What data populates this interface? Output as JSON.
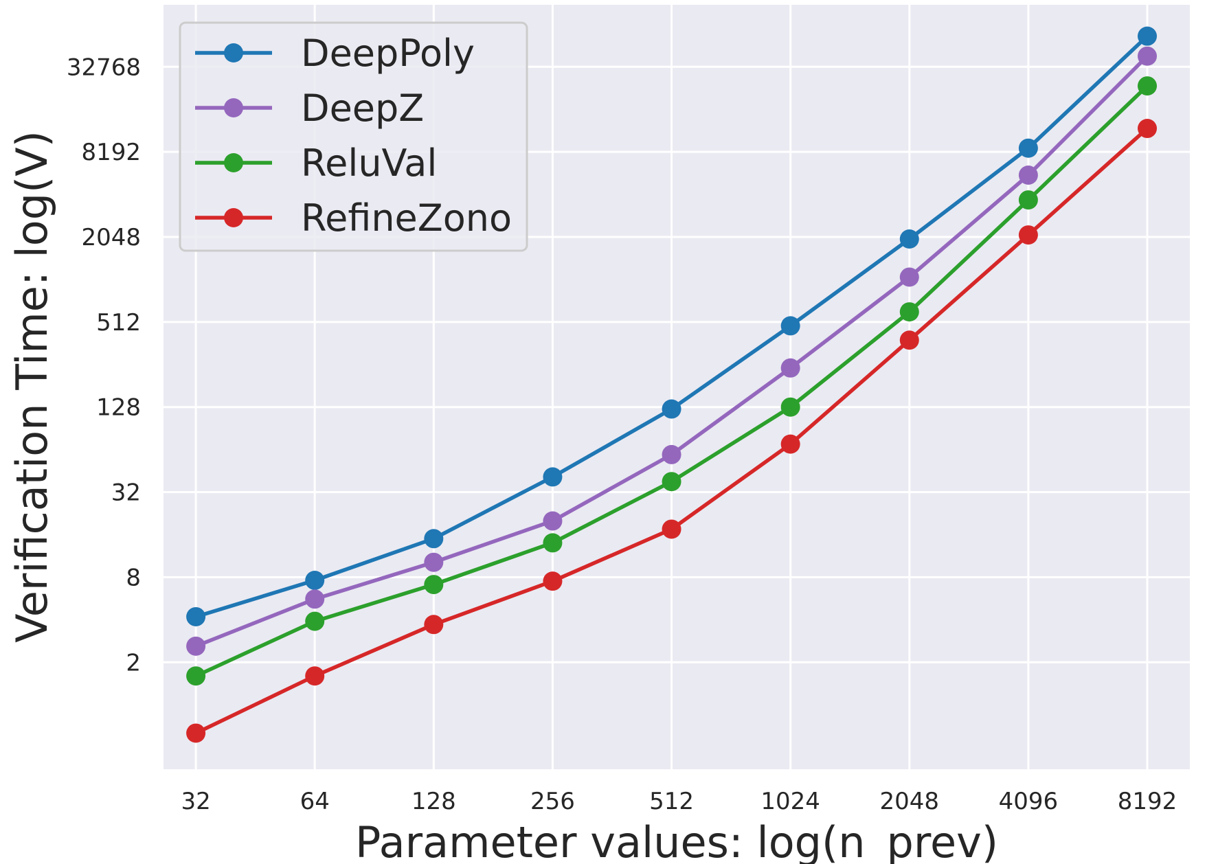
{
  "chart_data": {
    "type": "line",
    "title": "",
    "xlabel": "Parameter values: log(n_prev)",
    "ylabel": "Verification Time: log(V)",
    "x_scale": "log2",
    "y_scale": "log2",
    "x": [
      32,
      64,
      128,
      256,
      512,
      1024,
      2048,
      4096,
      8192
    ],
    "x_ticks": [
      "32",
      "64",
      "128",
      "256",
      "512",
      "1024",
      "2048",
      "4096",
      "8192"
    ],
    "y_ticks": [
      "2",
      "8",
      "32",
      "128",
      "512",
      "2048",
      "8192",
      "32768"
    ],
    "y_tick_values": [
      2,
      8,
      32,
      128,
      512,
      2048,
      8192,
      32768
    ],
    "xlim": [
      26.5,
      10500
    ],
    "ylim": [
      0.35,
      90000
    ],
    "grid": true,
    "legend_position": "top-left",
    "series": [
      {
        "name": "DeepPoly",
        "color": "#1f77b4",
        "values": [
          4.2,
          7.6,
          15,
          41,
          124,
          481,
          1980,
          8706,
          54000
        ]
      },
      {
        "name": "DeepZ",
        "color": "#9467bd",
        "values": [
          2.6,
          5.6,
          10.2,
          20,
          59,
          242,
          1064,
          5607,
          39000
        ]
      },
      {
        "name": "ReluVal",
        "color": "#2ca02c",
        "values": [
          1.6,
          3.9,
          7.1,
          14,
          38,
          128,
          604,
          3743,
          24000
        ]
      },
      {
        "name": "RefineZono",
        "color": "#d62728",
        "values": [
          0.63,
          1.6,
          3.7,
          7.5,
          17.5,
          70,
          381,
          2116,
          12000
        ]
      }
    ]
  }
}
